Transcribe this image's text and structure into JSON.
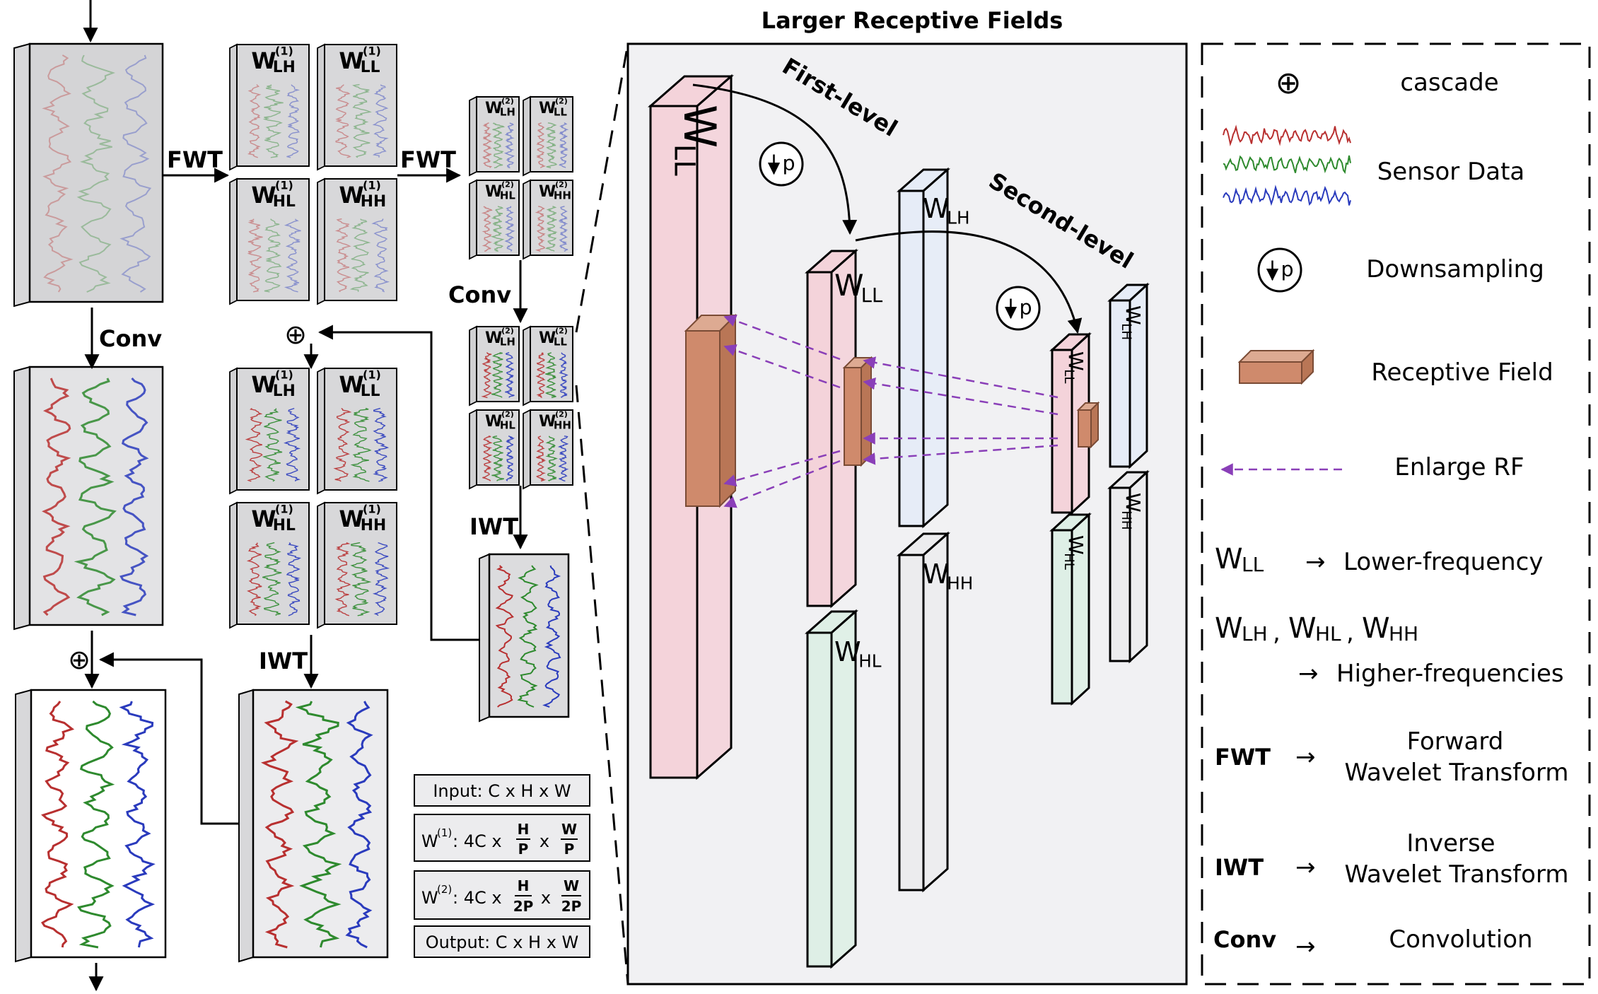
{
  "title": "Larger Receptive Fields",
  "labels": {
    "fwt": "FWT",
    "iwt": "IWT",
    "conv": "Conv",
    "w": "W",
    "ll": "LL",
    "lh": "LH",
    "hl": "HL",
    "hh": "HH",
    "lvl1": "(1)",
    "lvl2": "(2)",
    "first_level": "First-level",
    "second_level": "Second-level",
    "p": "p",
    "oplus": "⊕"
  },
  "dims": {
    "input": "Input: C x H x W",
    "output": "Output: C x H x W",
    "w1_prefix": "W",
    "w1_sup": "(1)",
    "w1_mid": ":  4C x",
    "w2_prefix": "W",
    "w2_sup": "(2)",
    "w2_mid": ":  4C x",
    "x": "x",
    "H": "H",
    "W": "W",
    "P": "P",
    "2P": "2P"
  },
  "legend": {
    "cascade": "cascade",
    "sensor": "Sensor Data",
    "down": "Downsampling",
    "rf": "Receptive Field",
    "enlarge": "Enlarge RF",
    "wll_desc": "Lower-frequency",
    "w_comma": ",",
    "higher": "Higher-frequencies",
    "fwt_l1": "Forward",
    "fwt_l2": "Wavelet Transform",
    "iwt_l1": "Inverse",
    "iwt_l2": "Wavelet Transform",
    "conv_desc": "Convolution",
    "arrow": "→"
  },
  "colors": {
    "pink": "#f4d3da",
    "blue": "#e6ecf7",
    "green": "#deefe6",
    "gray": "#ececee",
    "rf": "#cf8a6c",
    "dashed": "#8a3fb8",
    "red": "#b83030",
    "grn": "#2e8a2e",
    "blu": "#2a3bbd"
  }
}
